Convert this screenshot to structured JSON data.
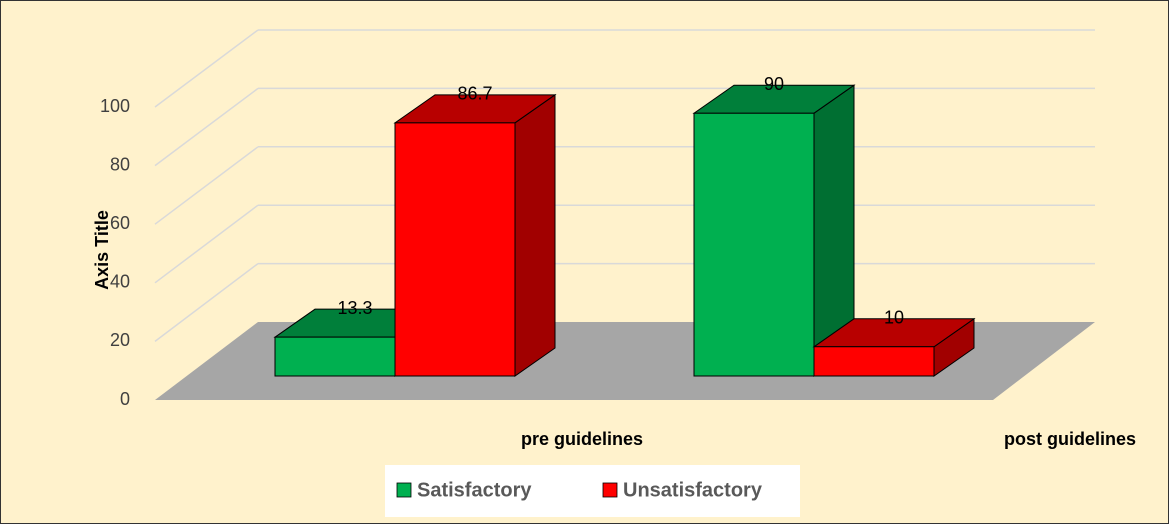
{
  "chart_data": {
    "type": "bar3d",
    "categories": [
      "pre guidelines",
      "post guidelines"
    ],
    "series": [
      {
        "name": "Satisfactory",
        "color": "#00b050",
        "values": [
          13.3,
          90
        ]
      },
      {
        "name": "Unsatisfactory",
        "color": "#ff0000",
        "values": [
          86.7,
          10
        ]
      }
    ],
    "y_label": "Axis Title",
    "ylim": [
      0,
      100
    ],
    "yticks": [
      0,
      20,
      40,
      60,
      80,
      100
    ],
    "grid": true,
    "legend": "bottom"
  }
}
